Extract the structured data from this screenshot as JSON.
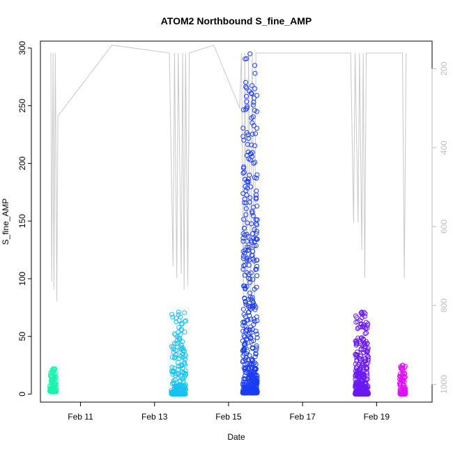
{
  "chart_data": {
    "type": "scatter",
    "title": "ATOM2 Northbound S_fine_AMP",
    "xlabel": "Date",
    "ylabel": "S_fine_AMP",
    "xlim": [
      "Feb 9 22:00",
      "Feb 20 12:00"
    ],
    "ylim": [
      -7,
      306
    ],
    "y_ticks": [
      0,
      50,
      100,
      150,
      200,
      250,
      300
    ],
    "x_ticks": [
      {
        "label": "Feb 11",
        "day": 11
      },
      {
        "label": "Feb 13",
        "day": 13
      },
      {
        "label": "Feb 15",
        "day": 15
      },
      {
        "label": "Feb 17",
        "day": 17
      },
      {
        "label": "Feb 19",
        "day": 19
      }
    ],
    "secondary_axis": {
      "ylim": [
        1045,
        130
      ],
      "inverted": true,
      "ticks": [
        200,
        400,
        600,
        800,
        1000
      ],
      "color": "#bdbdbd"
    },
    "grid": false,
    "legend": "none",
    "clusters": [
      {
        "day_start": 10.17,
        "day_end": 10.35,
        "y_min": 2,
        "y_max": 22,
        "color": "#17f5b0",
        "count": 120
      },
      {
        "day_start": 13.45,
        "day_end": 13.85,
        "y_min": 0,
        "y_max": 71,
        "color": "#16c2f2",
        "count": 220
      },
      {
        "day_start": 15.38,
        "day_end": 15.78,
        "y_min": 1,
        "y_max": 295,
        "color": "#1a3cf5",
        "count": 520
      },
      {
        "day_start": 18.42,
        "day_end": 18.78,
        "y_min": 0,
        "y_max": 71,
        "color": "#6a18f2",
        "count": 300
      },
      {
        "day_start": 19.62,
        "day_end": 19.78,
        "y_min": 0,
        "y_max": 25,
        "color": "#dc13f0",
        "count": 110
      }
    ],
    "depth_line": [
      [
        10.2,
        160
      ],
      [
        10.22,
        740
      ],
      [
        10.26,
        160
      ],
      [
        10.28,
        760
      ],
      [
        10.32,
        160
      ],
      [
        10.36,
        790
      ],
      [
        10.39,
        320
      ],
      [
        11.85,
        140
      ],
      [
        13.4,
        160
      ],
      [
        13.5,
        700
      ],
      [
        13.54,
        160
      ],
      [
        13.6,
        730
      ],
      [
        13.64,
        160
      ],
      [
        13.72,
        720
      ],
      [
        13.76,
        160
      ],
      [
        13.8,
        760
      ],
      [
        13.84,
        160
      ],
      [
        13.9,
        750
      ],
      [
        13.94,
        160
      ],
      [
        14.6,
        140
      ],
      [
        15.3,
        300
      ],
      [
        15.35,
        160
      ],
      [
        15.4,
        780
      ],
      [
        15.44,
        160
      ],
      [
        15.5,
        800
      ],
      [
        15.54,
        160
      ],
      [
        15.6,
        790
      ],
      [
        15.64,
        160
      ],
      [
        15.7,
        810
      ],
      [
        15.74,
        160
      ],
      [
        18.3,
        160
      ],
      [
        18.38,
        590
      ],
      [
        18.42,
        160
      ],
      [
        18.5,
        590
      ],
      [
        18.54,
        160
      ],
      [
        18.6,
        660
      ],
      [
        18.64,
        160
      ],
      [
        18.68,
        730
      ],
      [
        18.72,
        160
      ],
      [
        19.7,
        160
      ],
      [
        19.75,
        730
      ],
      [
        19.8,
        160
      ]
    ]
  }
}
